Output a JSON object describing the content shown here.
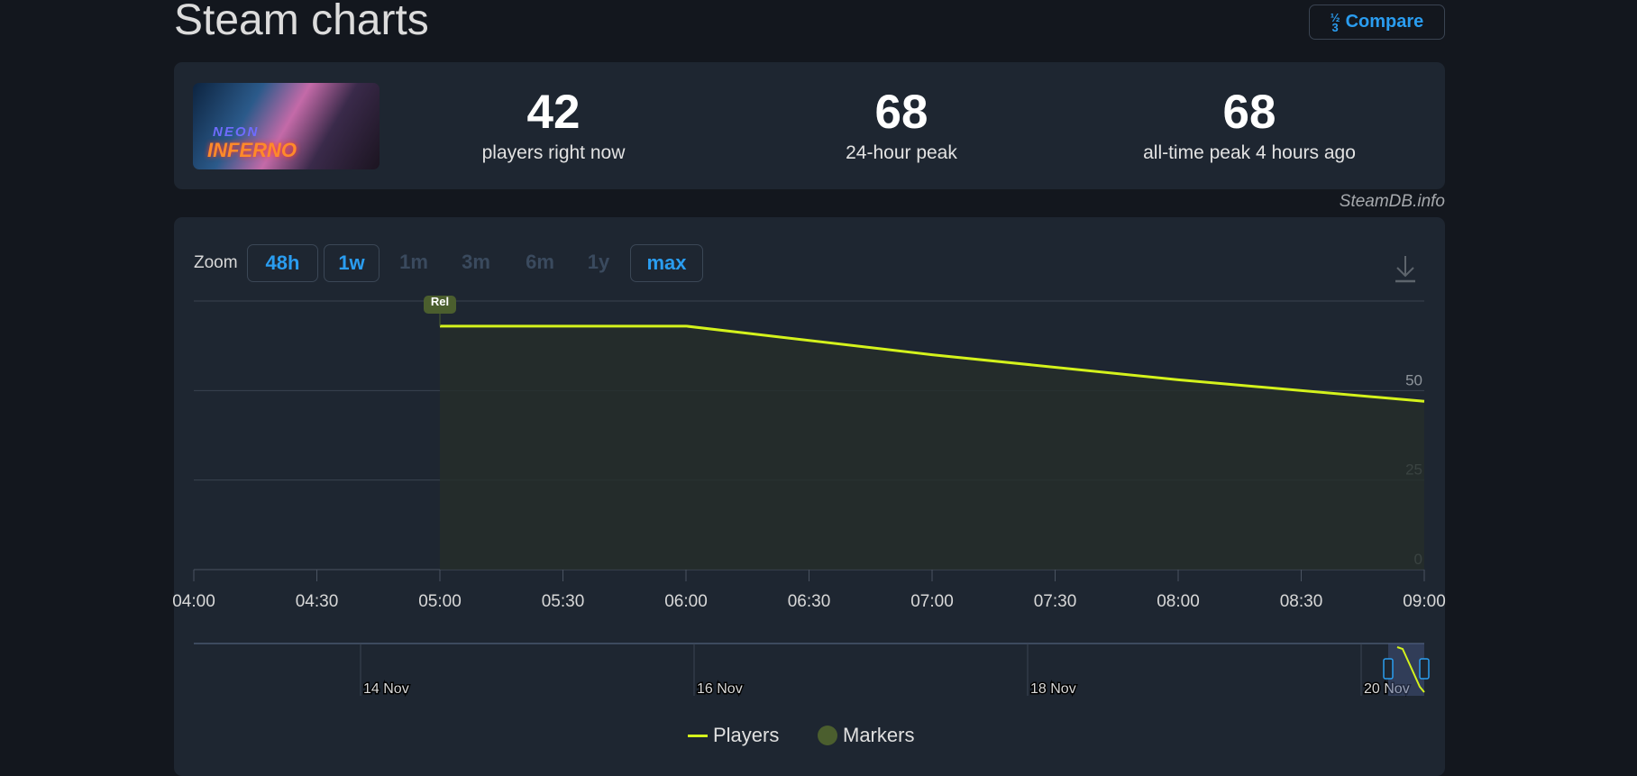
{
  "header": {
    "title": "Steam charts",
    "compare_label": "Compare",
    "compare_icon": "fraction-123-icon"
  },
  "game": {
    "cover_lettering": [
      "NEON",
      "INFERNO"
    ]
  },
  "stats": [
    {
      "value": "42",
      "label": "players right now"
    },
    {
      "value": "68",
      "label": "24-hour peak"
    },
    {
      "value": "68",
      "label": "all-time peak 4 hours ago"
    }
  ],
  "credit": "SteamDB.info",
  "zoom": {
    "label": "Zoom",
    "options": [
      {
        "label": "48h",
        "enabled": true
      },
      {
        "label": "1w",
        "enabled": true
      },
      {
        "label": "1m",
        "enabled": false
      },
      {
        "label": "3m",
        "enabled": false
      },
      {
        "label": "6m",
        "enabled": false
      },
      {
        "label": "1y",
        "enabled": false
      },
      {
        "label": "max",
        "enabled": true
      }
    ]
  },
  "colors": {
    "players": "#d4f21c",
    "markers": "#4b5e2e",
    "accent": "#2a9df0"
  },
  "chart_data": {
    "type": "area",
    "x": [
      "05:00",
      "06:00",
      "07:00",
      "08:00",
      "09:00"
    ],
    "series": [
      {
        "name": "Players",
        "values": [
          68,
          68,
          60,
          53,
          47
        ]
      }
    ],
    "x_ticks": [
      "04:00",
      "04:30",
      "05:00",
      "05:30",
      "06:00",
      "06:30",
      "07:00",
      "07:30",
      "08:00",
      "08:30",
      "09:00"
    ],
    "y_ticks": [
      "0",
      "25",
      "50"
    ],
    "ylim": [
      0,
      75
    ],
    "grid": true,
    "markers": [
      {
        "x": "05:00",
        "label": "Rel"
      }
    ],
    "navigator": {
      "date_labels": [
        "14 Nov",
        "16 Nov",
        "18 Nov",
        "20 Nov"
      ]
    },
    "legend": {
      "position": "bottom",
      "entries": [
        "Players",
        "Markers"
      ]
    }
  }
}
